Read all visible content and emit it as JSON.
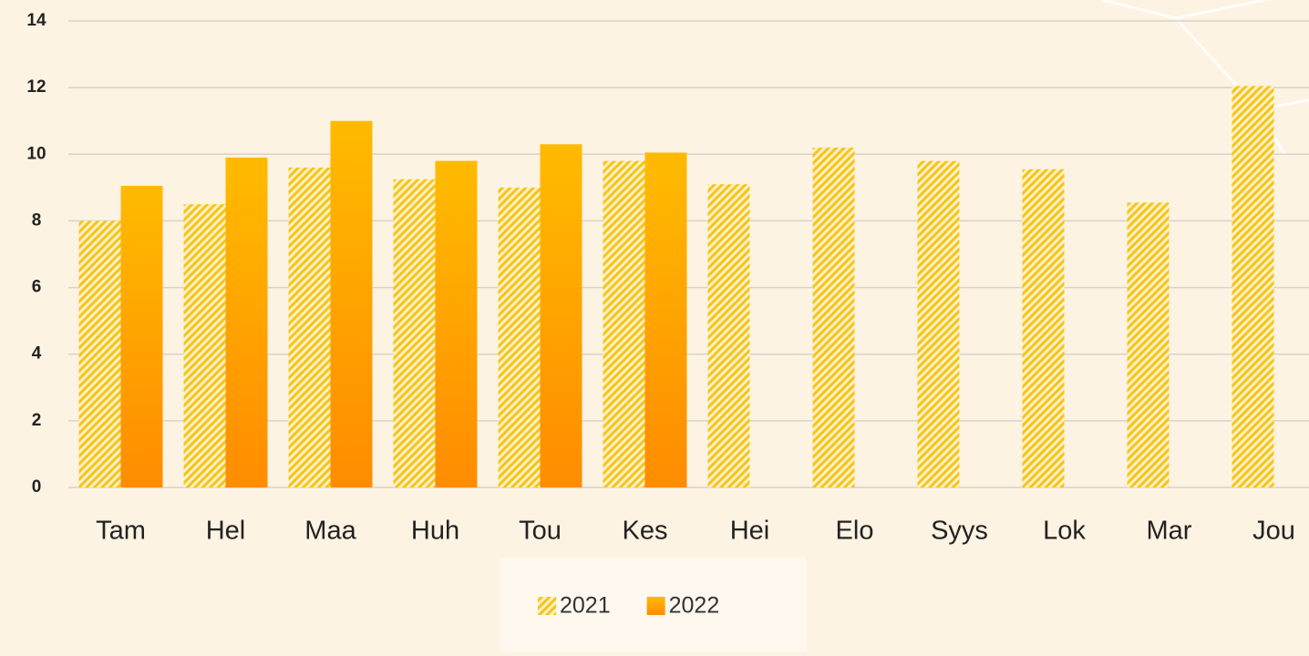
{
  "chart_data": {
    "type": "bar",
    "categories": [
      "Tam",
      "Hel",
      "Maa",
      "Huh",
      "Tou",
      "Kes",
      "Hei",
      "Elo",
      "Syys",
      "Lok",
      "Mar",
      "Jou"
    ],
    "series": [
      {
        "name": "2021",
        "color": "#f5c518",
        "values": [
          8.0,
          8.5,
          9.6,
          9.25,
          9.0,
          9.8,
          9.1,
          10.2,
          9.8,
          9.55,
          8.55,
          12.05
        ]
      },
      {
        "name": "2022",
        "color": "#ffbb00",
        "values": [
          9.05,
          9.9,
          11.0,
          9.8,
          10.3,
          10.05,
          null,
          null,
          null,
          null,
          null,
          null
        ]
      }
    ],
    "ylim": [
      0,
      14
    ],
    "yticks": [
      0,
      2,
      4,
      6,
      8,
      10,
      12,
      14
    ],
    "grid": true,
    "legend": "bottom"
  }
}
